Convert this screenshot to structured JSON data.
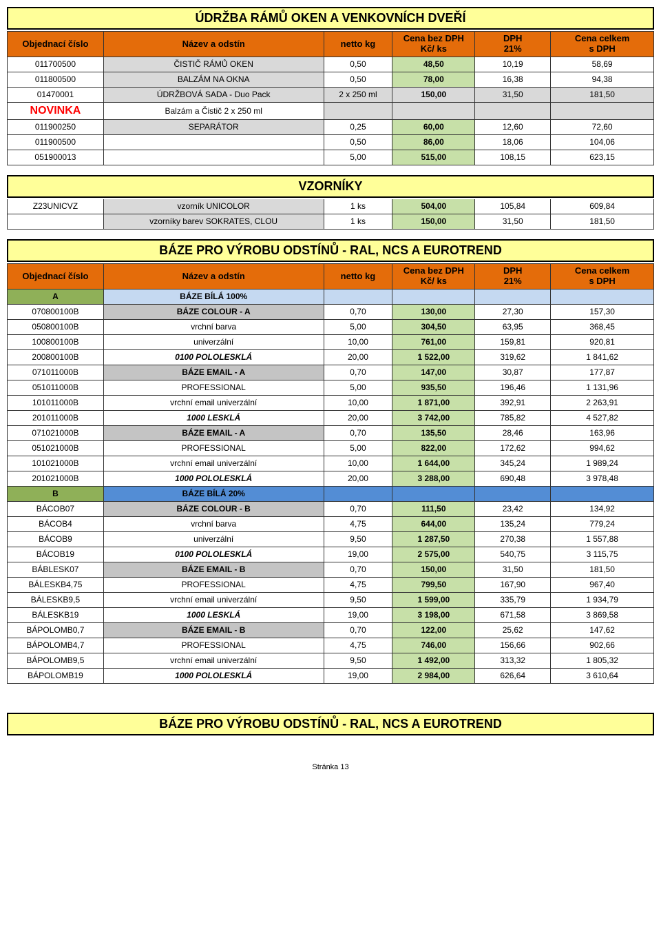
{
  "page_footer": "Stránka 13",
  "colors": {
    "title_bg": "#ffff99",
    "header_bg": "#e46c0a",
    "grey": "#d9d9d9",
    "grey2": "#c4c4c4",
    "ltblue": "#c5d9f1",
    "blue": "#538dd5",
    "olive": "#8fb058",
    "ltgreen": "#c7e0a8",
    "novinka": "#ff0000"
  },
  "headers": {
    "obj": "Objednací číslo",
    "nazev": "Název a odstín",
    "netto": "netto kg",
    "cena_bez": "Cena bez DPH",
    "cena_bez_sub": "Kč/ ks",
    "dph": "DPH",
    "dph_sub": "21%",
    "celkem": "Cena celkem",
    "celkem_sub": "s DPH"
  },
  "section1": {
    "title": "ÚDRŽBA RÁMŮ OKEN A VENKOVNÍCH DVEŘÍ",
    "rows": [
      {
        "c1": "011700500",
        "c2": "ČISTIČ RÁMŮ OKEN",
        "c3": "0,50",
        "c4": "48,50",
        "c5": "10,19",
        "c6": "58,69",
        "c2_style": "grey"
      },
      {
        "c1": "011800500",
        "c2": "BALZÁM NA OKNA",
        "c3": "0,50",
        "c4": "78,00",
        "c5": "16,38",
        "c6": "94,38",
        "c2_style": "grey"
      },
      {
        "c1": "01470001",
        "c2": "ÚDRŽBOVÁ SADA - Duo Pack",
        "c3": "2 x 250 ml",
        "c4": "150,00",
        "c5": "31,50",
        "c6": "181,50",
        "c2_style": "grey",
        "grey_rest": true
      },
      {
        "c1": "NOVINKA",
        "c2": "Balzám a Čistič  2 x 250 ml",
        "c3": "",
        "c4": "",
        "c5": "",
        "c6": "",
        "novinka": true,
        "grey_rest": true
      },
      {
        "c1": "011900250",
        "c2": "SEPARÁTOR",
        "c3": "0,25",
        "c4": "60,00",
        "c5": "12,60",
        "c6": "72,60",
        "c2_style": "grey"
      },
      {
        "c1": "011900500",
        "c2": "",
        "c3": "0,50",
        "c4": "86,00",
        "c5": "18,06",
        "c6": "104,06"
      },
      {
        "c1": "051900013",
        "c2": "",
        "c3": "5,00",
        "c4": "515,00",
        "c5": "108,15",
        "c6": "623,15"
      }
    ]
  },
  "section2": {
    "title": "VZORNÍKY",
    "rows": [
      {
        "c1": "Z23UNICVZ",
        "c2": "vzorník UNICOLOR",
        "c3": "1 ks",
        "c4": "504,00",
        "c5": "105,84",
        "c6": "609,84",
        "c2_style": "grey"
      },
      {
        "c1": "",
        "c2": "vzorníky barev SOKRATES, CLOU",
        "c3": "1 ks",
        "c4": "150,00",
        "c5": "31,50",
        "c6": "181,50",
        "c2_style": "grey"
      }
    ]
  },
  "section3": {
    "title": "BÁZE PRO VÝROBU ODSTÍNŮ - RAL, NCS A EUROTREND",
    "groupA": {
      "c1": "A",
      "c2": "BÁZE BÍLÁ 100%"
    },
    "rowsA": [
      {
        "c1": "070800100B",
        "c2": "BÁZE COLOUR -  A",
        "c3": "0,70",
        "c4": "130,00",
        "c5": "27,30",
        "c6": "157,30",
        "c2_style": "grey2",
        "bold2": true
      },
      {
        "c1": "050800100B",
        "c2": "vrchní barva",
        "c3": "5,00",
        "c4": "304,50",
        "c5": "63,95",
        "c6": "368,45"
      },
      {
        "c1": "100800100B",
        "c2": "univerzální",
        "c3": "10,00",
        "c4": "761,00",
        "c5": "159,81",
        "c6": "920,81"
      },
      {
        "c1": "200800100B",
        "c2": "0100  POLOLESKLÁ",
        "c3": "20,00",
        "c4": "1 522,00",
        "c5": "319,62",
        "c6": "1 841,62",
        "italic2": true,
        "bold2": true
      },
      {
        "c1": "071011000B",
        "c2": "BÁZE EMAIL  -  A",
        "c3": "0,70",
        "c4": "147,00",
        "c5": "30,87",
        "c6": "177,87",
        "c2_style": "grey2",
        "bold2": true
      },
      {
        "c1": "051011000B",
        "c2": "PROFESSIONAL",
        "c3": "5,00",
        "c4": "935,50",
        "c5": "196,46",
        "c6": "1 131,96"
      },
      {
        "c1": "101011000B",
        "c2": "vrchní email univerzální",
        "c3": "10,00",
        "c4": "1 871,00",
        "c5": "392,91",
        "c6": "2 263,91"
      },
      {
        "c1": "201011000B",
        "c2": "1000  LESKLÁ",
        "c3": "20,00",
        "c4": "3 742,00",
        "c5": "785,82",
        "c6": "4 527,82",
        "italic2": true,
        "bold2": true
      },
      {
        "c1": "071021000B",
        "c2": "BÁZE EMAIL  -  A",
        "c3": "0,70",
        "c4": "135,50",
        "c5": "28,46",
        "c6": "163,96",
        "c2_style": "grey2",
        "bold2": true
      },
      {
        "c1": "051021000B",
        "c2": "PROFESSIONAL",
        "c3": "5,00",
        "c4": "822,00",
        "c5": "172,62",
        "c6": "994,62"
      },
      {
        "c1": "101021000B",
        "c2": "vrchní email univerzální",
        "c3": "10,00",
        "c4": "1 644,00",
        "c5": "345,24",
        "c6": "1 989,24"
      },
      {
        "c1": "201021000B",
        "c2": "1000  POLOLESKLÁ",
        "c3": "20,00",
        "c4": "3 288,00",
        "c5": "690,48",
        "c6": "3 978,48",
        "italic2": true,
        "bold2": true
      }
    ],
    "groupB": {
      "c1": "B",
      "c2": "BÁZE BÍLÁ 20%"
    },
    "rowsB": [
      {
        "c1": "BÁCOB07",
        "c2": "BÁZE COLOUR -  B",
        "c3": "0,70",
        "c4": "111,50",
        "c5": "23,42",
        "c6": "134,92",
        "c2_style": "grey2",
        "bold2": true
      },
      {
        "c1": "BÁCOB4",
        "c2": "vrchní barva",
        "c3": "4,75",
        "c4": "644,00",
        "c5": "135,24",
        "c6": "779,24"
      },
      {
        "c1": "BÁCOB9",
        "c2": "univerzální",
        "c3": "9,50",
        "c4": "1 287,50",
        "c5": "270,38",
        "c6": "1 557,88"
      },
      {
        "c1": "BÁCOB19",
        "c2": "0100  POLOLESKLÁ",
        "c3": "19,00",
        "c4": "2 575,00",
        "c5": "540,75",
        "c6": "3 115,75",
        "italic2": true,
        "bold2": true
      },
      {
        "c1": "BÁBLESK07",
        "c2": "BÁZE EMAIL  -  B",
        "c3": "0,70",
        "c4": "150,00",
        "c5": "31,50",
        "c6": "181,50",
        "c2_style": "grey2",
        "bold2": true
      },
      {
        "c1": "BÁLESKB4,75",
        "c2": "PROFESSIONAL",
        "c3": "4,75",
        "c4": "799,50",
        "c5": "167,90",
        "c6": "967,40"
      },
      {
        "c1": "BÁLESKB9,5",
        "c2": "vrchní email univerzální",
        "c3": "9,50",
        "c4": "1 599,00",
        "c5": "335,79",
        "c6": "1 934,79"
      },
      {
        "c1": "BÁLESKB19",
        "c2": "1000  LESKLÁ",
        "c3": "19,00",
        "c4": "3 198,00",
        "c5": "671,58",
        "c6": "3 869,58",
        "italic2": true,
        "bold2": true
      },
      {
        "c1": "BÁPOLOMB0,7",
        "c2": "BÁZE EMAIL  -  B",
        "c3": "0,70",
        "c4": "122,00",
        "c5": "25,62",
        "c6": "147,62",
        "c2_style": "grey2",
        "bold2": true
      },
      {
        "c1": "BÁPOLOMB4,7",
        "c2": "PROFESSIONAL",
        "c3": "4,75",
        "c4": "746,00",
        "c5": "156,66",
        "c6": "902,66"
      },
      {
        "c1": "BÁPOLOMB9,5",
        "c2": "vrchní email univerzální",
        "c3": "9,50",
        "c4": "1 492,00",
        "c5": "313,32",
        "c6": "1 805,32"
      },
      {
        "c1": "BÁPOLOMB19",
        "c2": "1000  POLOLESKLÁ",
        "c3": "19,00",
        "c4": "2 984,00",
        "c5": "626,64",
        "c6": "3 610,64",
        "italic2": true,
        "bold2": true
      }
    ]
  },
  "section_footer_title": "BÁZE PRO VÝROBU ODSTÍNŮ - RAL, NCS A EUROTREND"
}
